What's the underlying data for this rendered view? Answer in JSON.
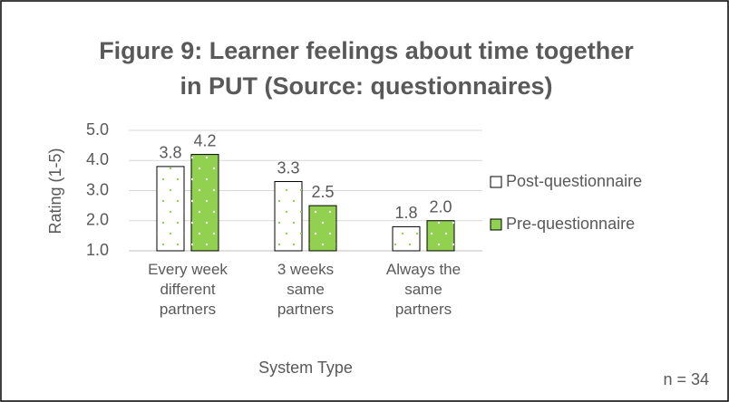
{
  "chart_data": {
    "type": "bar",
    "title_lines": [
      "Figure 9: Learner feelings about time together",
      "in PUT (Source: questionnaires)"
    ],
    "categories": [
      "Every week different partners",
      "3 weeks same partners",
      "Always the same partners"
    ],
    "series": [
      {
        "name": "Post-questionnaire",
        "color": "#ffffff",
        "values": [
          3.8,
          3.3,
          1.8
        ],
        "value_labels": [
          "3.8",
          "3.3",
          "1.8"
        ]
      },
      {
        "name": "Pre-questionnaire",
        "color": "#92d050",
        "values": [
          4.2,
          2.5,
          2.0
        ],
        "value_labels": [
          "4.2",
          "2.5",
          "2.0"
        ]
      }
    ],
    "ylim": [
      1,
      5
    ],
    "yticks": [
      {
        "value": 1,
        "label": "1.0"
      },
      {
        "value": 2,
        "label": "2.0"
      },
      {
        "value": 3,
        "label": "3.0"
      },
      {
        "value": 4,
        "label": "4.0"
      },
      {
        "value": 5,
        "label": "5.0"
      }
    ],
    "y_label": "Rating (1-5)",
    "x_label": "System Type",
    "annotation": "n = 34",
    "grid": true,
    "legend": "right"
  }
}
